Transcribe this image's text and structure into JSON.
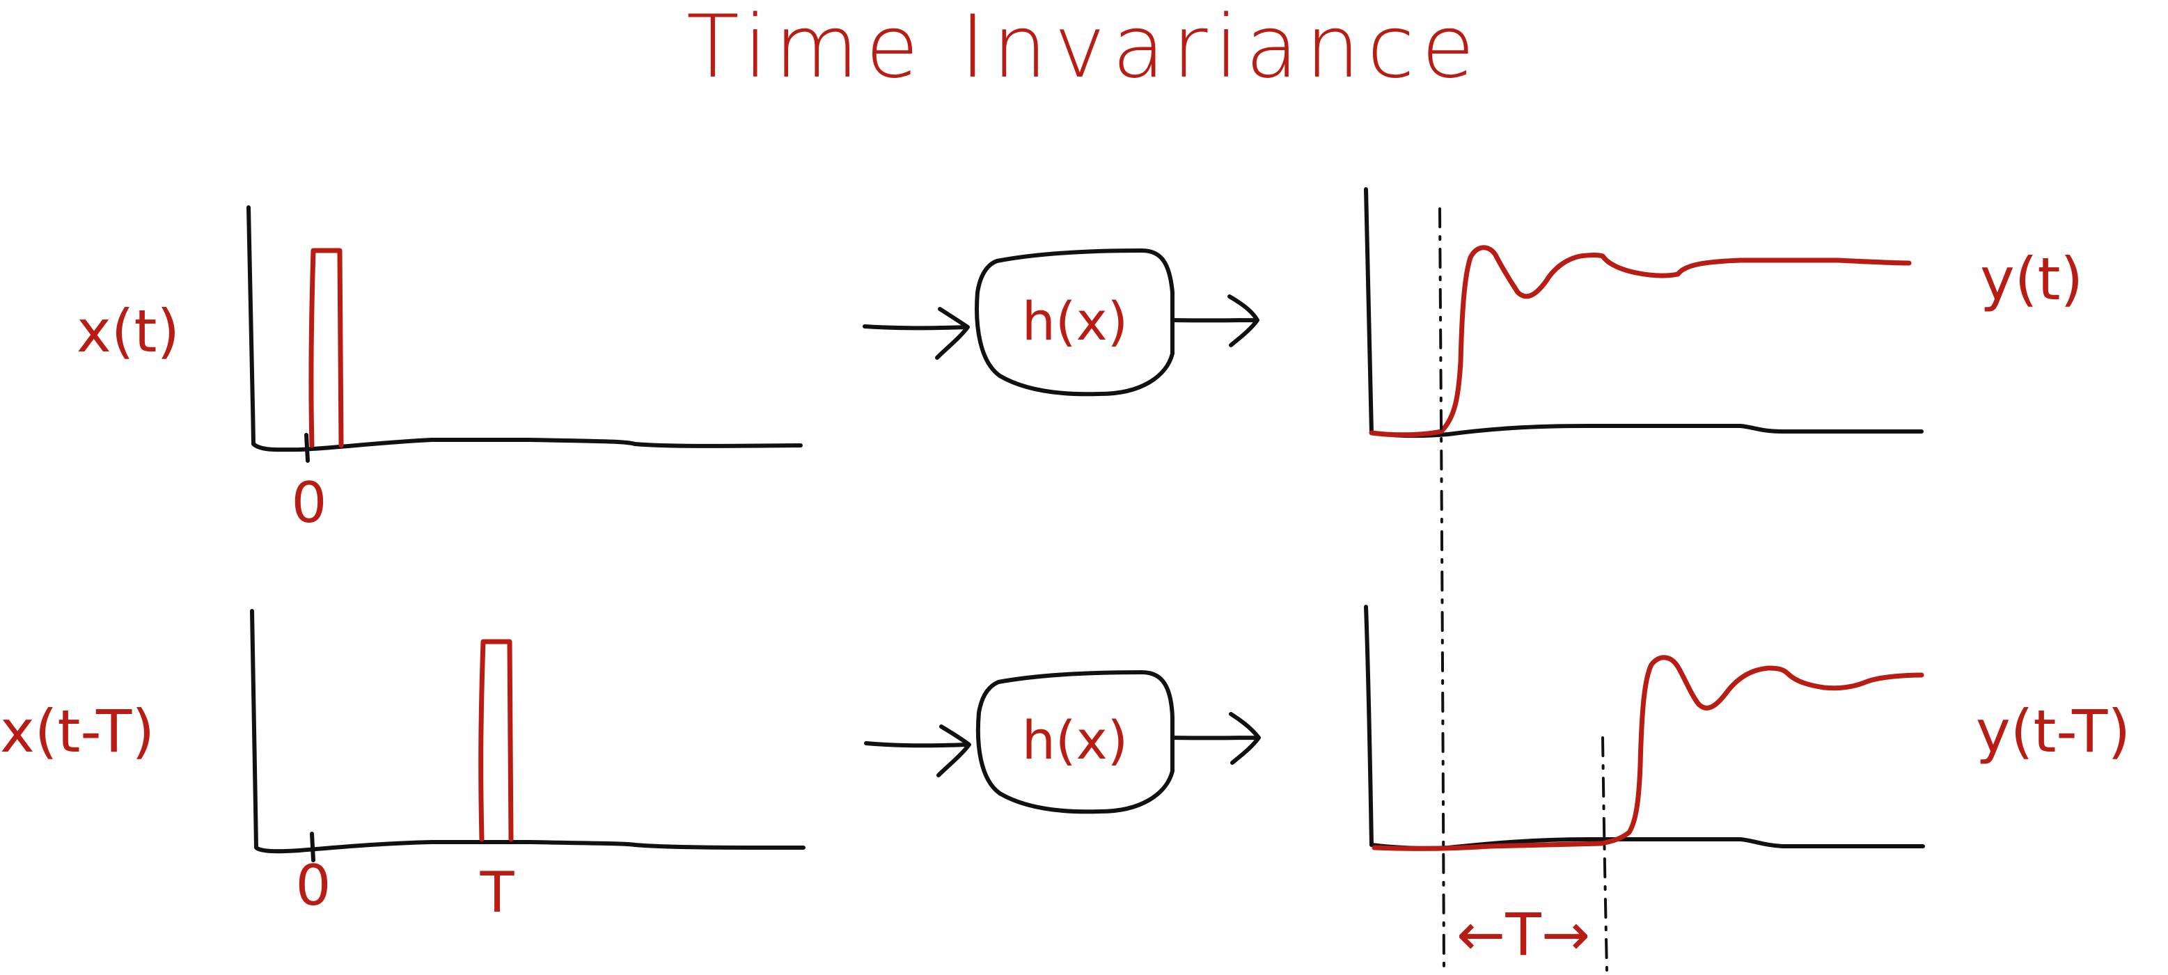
{
  "title": "Time Invariance",
  "input_labels": {
    "top": "x(t)",
    "bottom": "x(t-T)"
  },
  "output_labels": {
    "top": "y(t)",
    "bottom": "y(t-T)"
  },
  "tick_labels": {
    "top_zero": "0",
    "bottom_zero": "0",
    "bottom_shift": "T"
  },
  "system_box": {
    "top": "h(x)",
    "bottom": "h(x)"
  },
  "shift_marker": "←T→",
  "colors": {
    "ink": "#111111",
    "accent": "#b81c12",
    "background": "#ffffff"
  }
}
